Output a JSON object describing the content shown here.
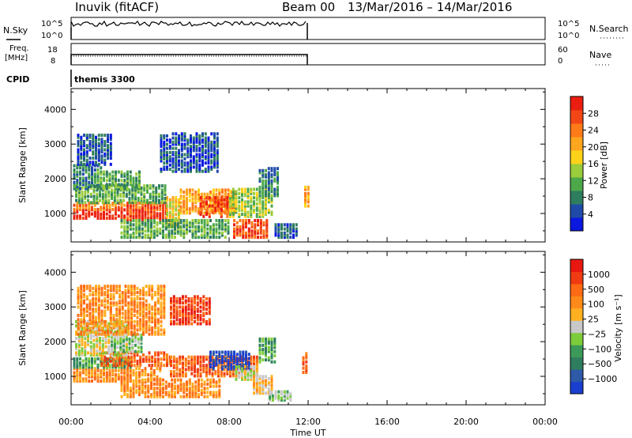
{
  "header": {
    "station": "Inuvik (fitACF)",
    "beam": "Beam 00",
    "date_range": "13/Mar/2016 – 14/Mar/2016"
  },
  "meta_panels": {
    "nsky": {
      "left_label": "N.Sky",
      "right_label": "N.Search",
      "left_ticks": [
        "10^5",
        "10^0"
      ],
      "right_ticks": [
        "10^5",
        "10^0"
      ]
    },
    "freq": {
      "left_label_1": "Freq.",
      "left_label_2": "[MHz]",
      "right_label": "Nave",
      "left_ticks": [
        "18",
        "8"
      ],
      "right_ticks": [
        "60",
        "0"
      ]
    },
    "cpid": {
      "label": "CPID",
      "value": "themis 3300"
    }
  },
  "time_axis": {
    "tick_labels": [
      "00:00",
      "04:00",
      "08:00",
      "12:00",
      "16:00",
      "20:00",
      "00:00"
    ],
    "label": "Time UT"
  },
  "chart_data": [
    {
      "type": "heatmap",
      "name": "power",
      "ylabel": "Slant Range [km]",
      "yticks": [
        "4000",
        "3000",
        "2000",
        "1000"
      ],
      "ylim": [
        180,
        4600
      ],
      "xlim_hours": [
        0,
        24
      ],
      "colorbar": {
        "label": "Power [dB]",
        "ticks": [
          "28",
          "24",
          "20",
          "16",
          "12",
          "8",
          "4"
        ],
        "colors": [
          "#0a18e0",
          "#1f4aa8",
          "#2f7d5f",
          "#4da84a",
          "#9acc3c",
          "#ffd21a",
          "#ffa51e",
          "#ff7a18",
          "#f34616",
          "#ea1e10"
        ]
      },
      "blobs": [
        {
          "t0": 0.1,
          "t1": 3.9,
          "r0": 850,
          "r1": 1100,
          "level": 9
        },
        {
          "t0": 0.1,
          "t1": 4.2,
          "r0": 1100,
          "r1": 1300,
          "level": 7
        },
        {
          "t0": 2.8,
          "t1": 4.8,
          "r0": 800,
          "r1": 1300,
          "level": 8
        },
        {
          "t0": 4.8,
          "t1": 5.5,
          "r0": 600,
          "r1": 1500,
          "level": 5
        },
        {
          "t0": 5.5,
          "t1": 8.3,
          "r0": 1000,
          "r1": 1700,
          "level": 6
        },
        {
          "t0": 6.5,
          "t1": 8.2,
          "r0": 900,
          "r1": 1500,
          "level": 8
        },
        {
          "t0": 0.2,
          "t1": 4.8,
          "r0": 1300,
          "r1": 1800,
          "level": 3
        },
        {
          "t0": 0.1,
          "t1": 1.5,
          "r0": 1700,
          "r1": 2400,
          "level": 2
        },
        {
          "t0": 1.3,
          "t1": 3.5,
          "r0": 1700,
          "r1": 2200,
          "level": 3
        },
        {
          "t0": 8.0,
          "t1": 10.2,
          "r0": 900,
          "r1": 1700,
          "level": 4
        },
        {
          "t0": 8.2,
          "t1": 10.0,
          "r0": 300,
          "r1": 800,
          "level": 8
        },
        {
          "t0": 2.5,
          "t1": 8.0,
          "r0": 300,
          "r1": 800,
          "level": 3
        },
        {
          "t0": 0.3,
          "t1": 2.0,
          "r0": 2400,
          "r1": 3300,
          "level": 1
        },
        {
          "t0": 4.5,
          "t1": 7.5,
          "r0": 2200,
          "r1": 3300,
          "level": 1
        },
        {
          "t0": 9.5,
          "t1": 10.5,
          "r0": 1500,
          "r1": 2300,
          "level": 2
        },
        {
          "t0": 11.8,
          "t1": 12.0,
          "r0": 1200,
          "r1": 1800,
          "level": 6
        },
        {
          "t0": 10.3,
          "t1": 11.5,
          "r0": 300,
          "r1": 700,
          "level": 1
        }
      ]
    },
    {
      "type": "heatmap",
      "name": "velocity",
      "ylabel": "Slant Range [km]",
      "yticks": [
        "4000",
        "3000",
        "2000",
        "1000"
      ],
      "ylim": [
        180,
        4600
      ],
      "xlim_hours": [
        0,
        24
      ],
      "colorbar": {
        "label": "Velocity [m s⁻¹]",
        "ticks": [
          "1000",
          "500",
          "100",
          "25",
          "−25",
          "−100",
          "−500",
          "−1000"
        ],
        "colors": [
          "#1a3fd0",
          "#2f5aa8",
          "#2f7d5f",
          "#3c9a58",
          "#7dcc3a",
          "#c8c8c8",
          "#ffb020",
          "#ff8a1a",
          "#ff6a14",
          "#f03a12",
          "#e81810"
        ]
      },
      "blobs": [
        {
          "t0": 0.1,
          "t1": 4.5,
          "r0": 850,
          "r1": 1250,
          "level": 7
        },
        {
          "t0": 0.1,
          "t1": 3.0,
          "r0": 1250,
          "r1": 1500,
          "level": 3
        },
        {
          "t0": 1.5,
          "t1": 5.0,
          "r0": 1300,
          "r1": 1700,
          "level": 8
        },
        {
          "t0": 5.0,
          "t1": 9.5,
          "r0": 1000,
          "r1": 1600,
          "level": 8
        },
        {
          "t0": 7.0,
          "t1": 9.0,
          "r0": 1200,
          "r1": 1700,
          "level": 0
        },
        {
          "t0": 8.3,
          "t1": 9.5,
          "r0": 900,
          "r1": 1300,
          "level": 5
        },
        {
          "t0": 9.2,
          "t1": 10.2,
          "r0": 500,
          "r1": 1000,
          "level": 6
        },
        {
          "t0": 0.2,
          "t1": 2.8,
          "r0": 1600,
          "r1": 2600,
          "level": 5
        },
        {
          "t0": 2.0,
          "t1": 3.5,
          "r0": 1700,
          "r1": 2200,
          "level": 4
        },
        {
          "t0": 2.5,
          "t1": 7.5,
          "r0": 400,
          "r1": 900,
          "level": 7
        },
        {
          "t0": 0.3,
          "t1": 4.8,
          "r0": 2200,
          "r1": 3600,
          "level": 7
        },
        {
          "t0": 5.0,
          "t1": 7.0,
          "r0": 2500,
          "r1": 3300,
          "level": 9
        },
        {
          "t0": 9.5,
          "t1": 10.3,
          "r0": 1400,
          "r1": 2100,
          "level": 3
        },
        {
          "t0": 11.7,
          "t1": 12.0,
          "r0": 1100,
          "r1": 1700,
          "level": 8
        },
        {
          "t0": 10.0,
          "t1": 11.2,
          "r0": 300,
          "r1": 600,
          "level": 4
        }
      ]
    }
  ]
}
